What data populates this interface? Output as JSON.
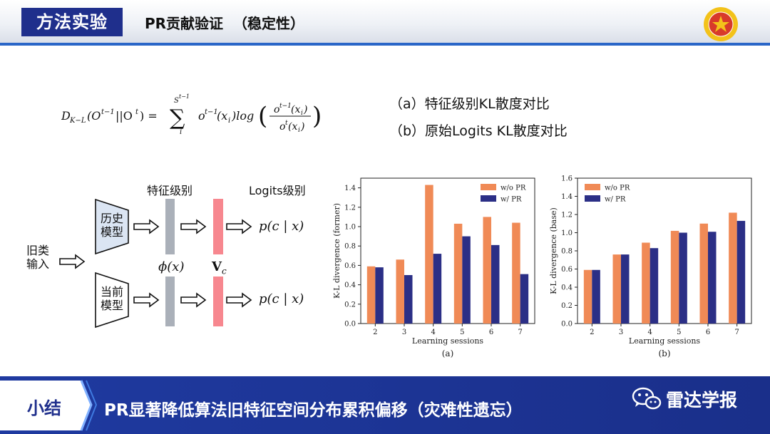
{
  "header": {
    "section_tag": "方法实验",
    "title": "PR贡献验证  （稳定性）"
  },
  "notes": {
    "a": "（a）特征级别KL散度对比",
    "b": "（b）原始Logits KL散度对比"
  },
  "diagram": {
    "feature_level": "特征级别",
    "logits_level": "Logits级别",
    "input_line1": "旧类",
    "input_line2": "输入",
    "history_model_line1": "历史",
    "history_model_line2": "模型",
    "current_model_line1": "当前",
    "current_model_line2": "模型",
    "phi": "ϕ(x)",
    "vc": "V",
    "vc_sub": "c",
    "pcx_top": "p(c | x)",
    "pcx_bottom": "p(c | x)"
  },
  "colors": {
    "wo_pr": "#f08a56",
    "w_pr": "#2b2f86",
    "header_blue": "#1f2f8c",
    "feature_bar": "#aab0b9",
    "logit_bar": "#f7878f",
    "model_box": "#dbe5f3"
  },
  "chart_data": [
    {
      "type": "bar",
      "categories": [
        "2",
        "3",
        "4",
        "5",
        "6",
        "7"
      ],
      "series": [
        {
          "name": "w/o PR",
          "values": [
            0.59,
            0.66,
            1.43,
            1.03,
            1.1,
            1.04
          ]
        },
        {
          "name": "w/ PR",
          "values": [
            0.58,
            0.5,
            0.72,
            0.9,
            0.81,
            0.51
          ]
        }
      ],
      "xlabel": "Learning sessions",
      "ylabel": "K-L divergence (former)",
      "caption": "(a)",
      "ylim": [
        0,
        1.5
      ],
      "yticks": [
        "0.0",
        "0.2",
        "0.4",
        "0.6",
        "0.8",
        "1.0",
        "1.2",
        "1.4"
      ],
      "legend": "top-right",
      "grid": false
    },
    {
      "type": "bar",
      "categories": [
        "2",
        "3",
        "4",
        "5",
        "6",
        "7"
      ],
      "series": [
        {
          "name": "w/o PR",
          "values": [
            0.59,
            0.76,
            0.89,
            1.02,
            1.1,
            1.22
          ]
        },
        {
          "name": "w/ PR",
          "values": [
            0.59,
            0.76,
            0.83,
            1.0,
            1.01,
            1.13
          ]
        }
      ],
      "xlabel": "Learning sessions",
      "ylabel": "K-L divergence (base)",
      "caption": "(b)",
      "ylim": [
        0,
        1.6
      ],
      "yticks": [
        "0.0",
        "0.2",
        "0.4",
        "0.6",
        "0.8",
        "1.0",
        "1.2",
        "1.4",
        "1.6"
      ],
      "legend": "top-left",
      "grid": false
    }
  ],
  "summary": {
    "tag": "小结",
    "text": "PR显著降低算法旧特征空间分布累积偏移（灾难性遗忘）",
    "watermark": "雷达学报"
  }
}
